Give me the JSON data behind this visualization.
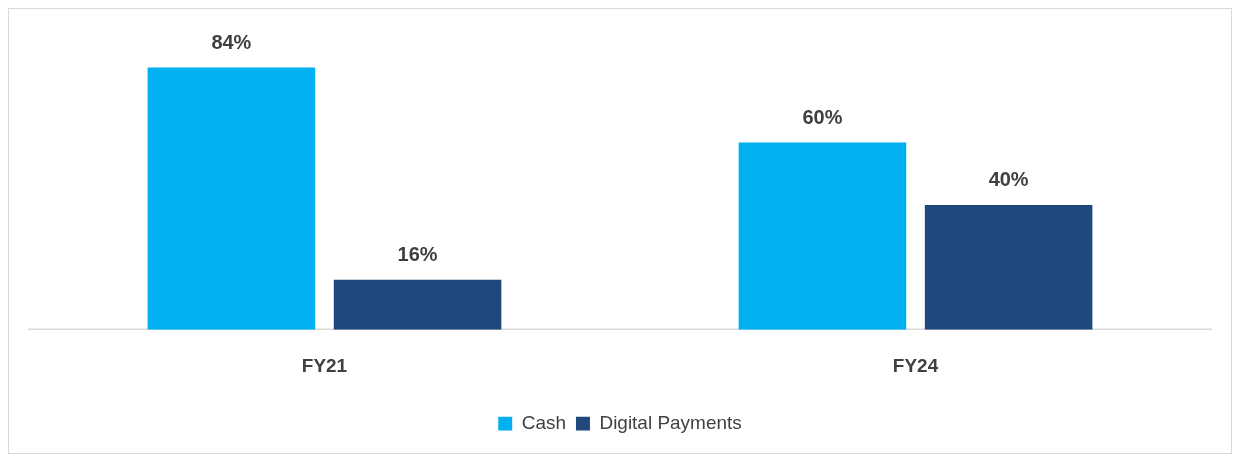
{
  "chart_data": {
    "type": "bar",
    "categories": [
      "FY21",
      "FY24"
    ],
    "series": [
      {
        "name": "Cash",
        "color": "#00b0f0",
        "values": [
          84,
          60
        ],
        "value_labels": [
          "84%",
          "60%"
        ]
      },
      {
        "name": "Digital Payments",
        "color": "#1f497d",
        "values": [
          16,
          40
        ],
        "value_labels": [
          "16%",
          "40%"
        ]
      }
    ],
    "grid": false,
    "legend": "bottom"
  }
}
